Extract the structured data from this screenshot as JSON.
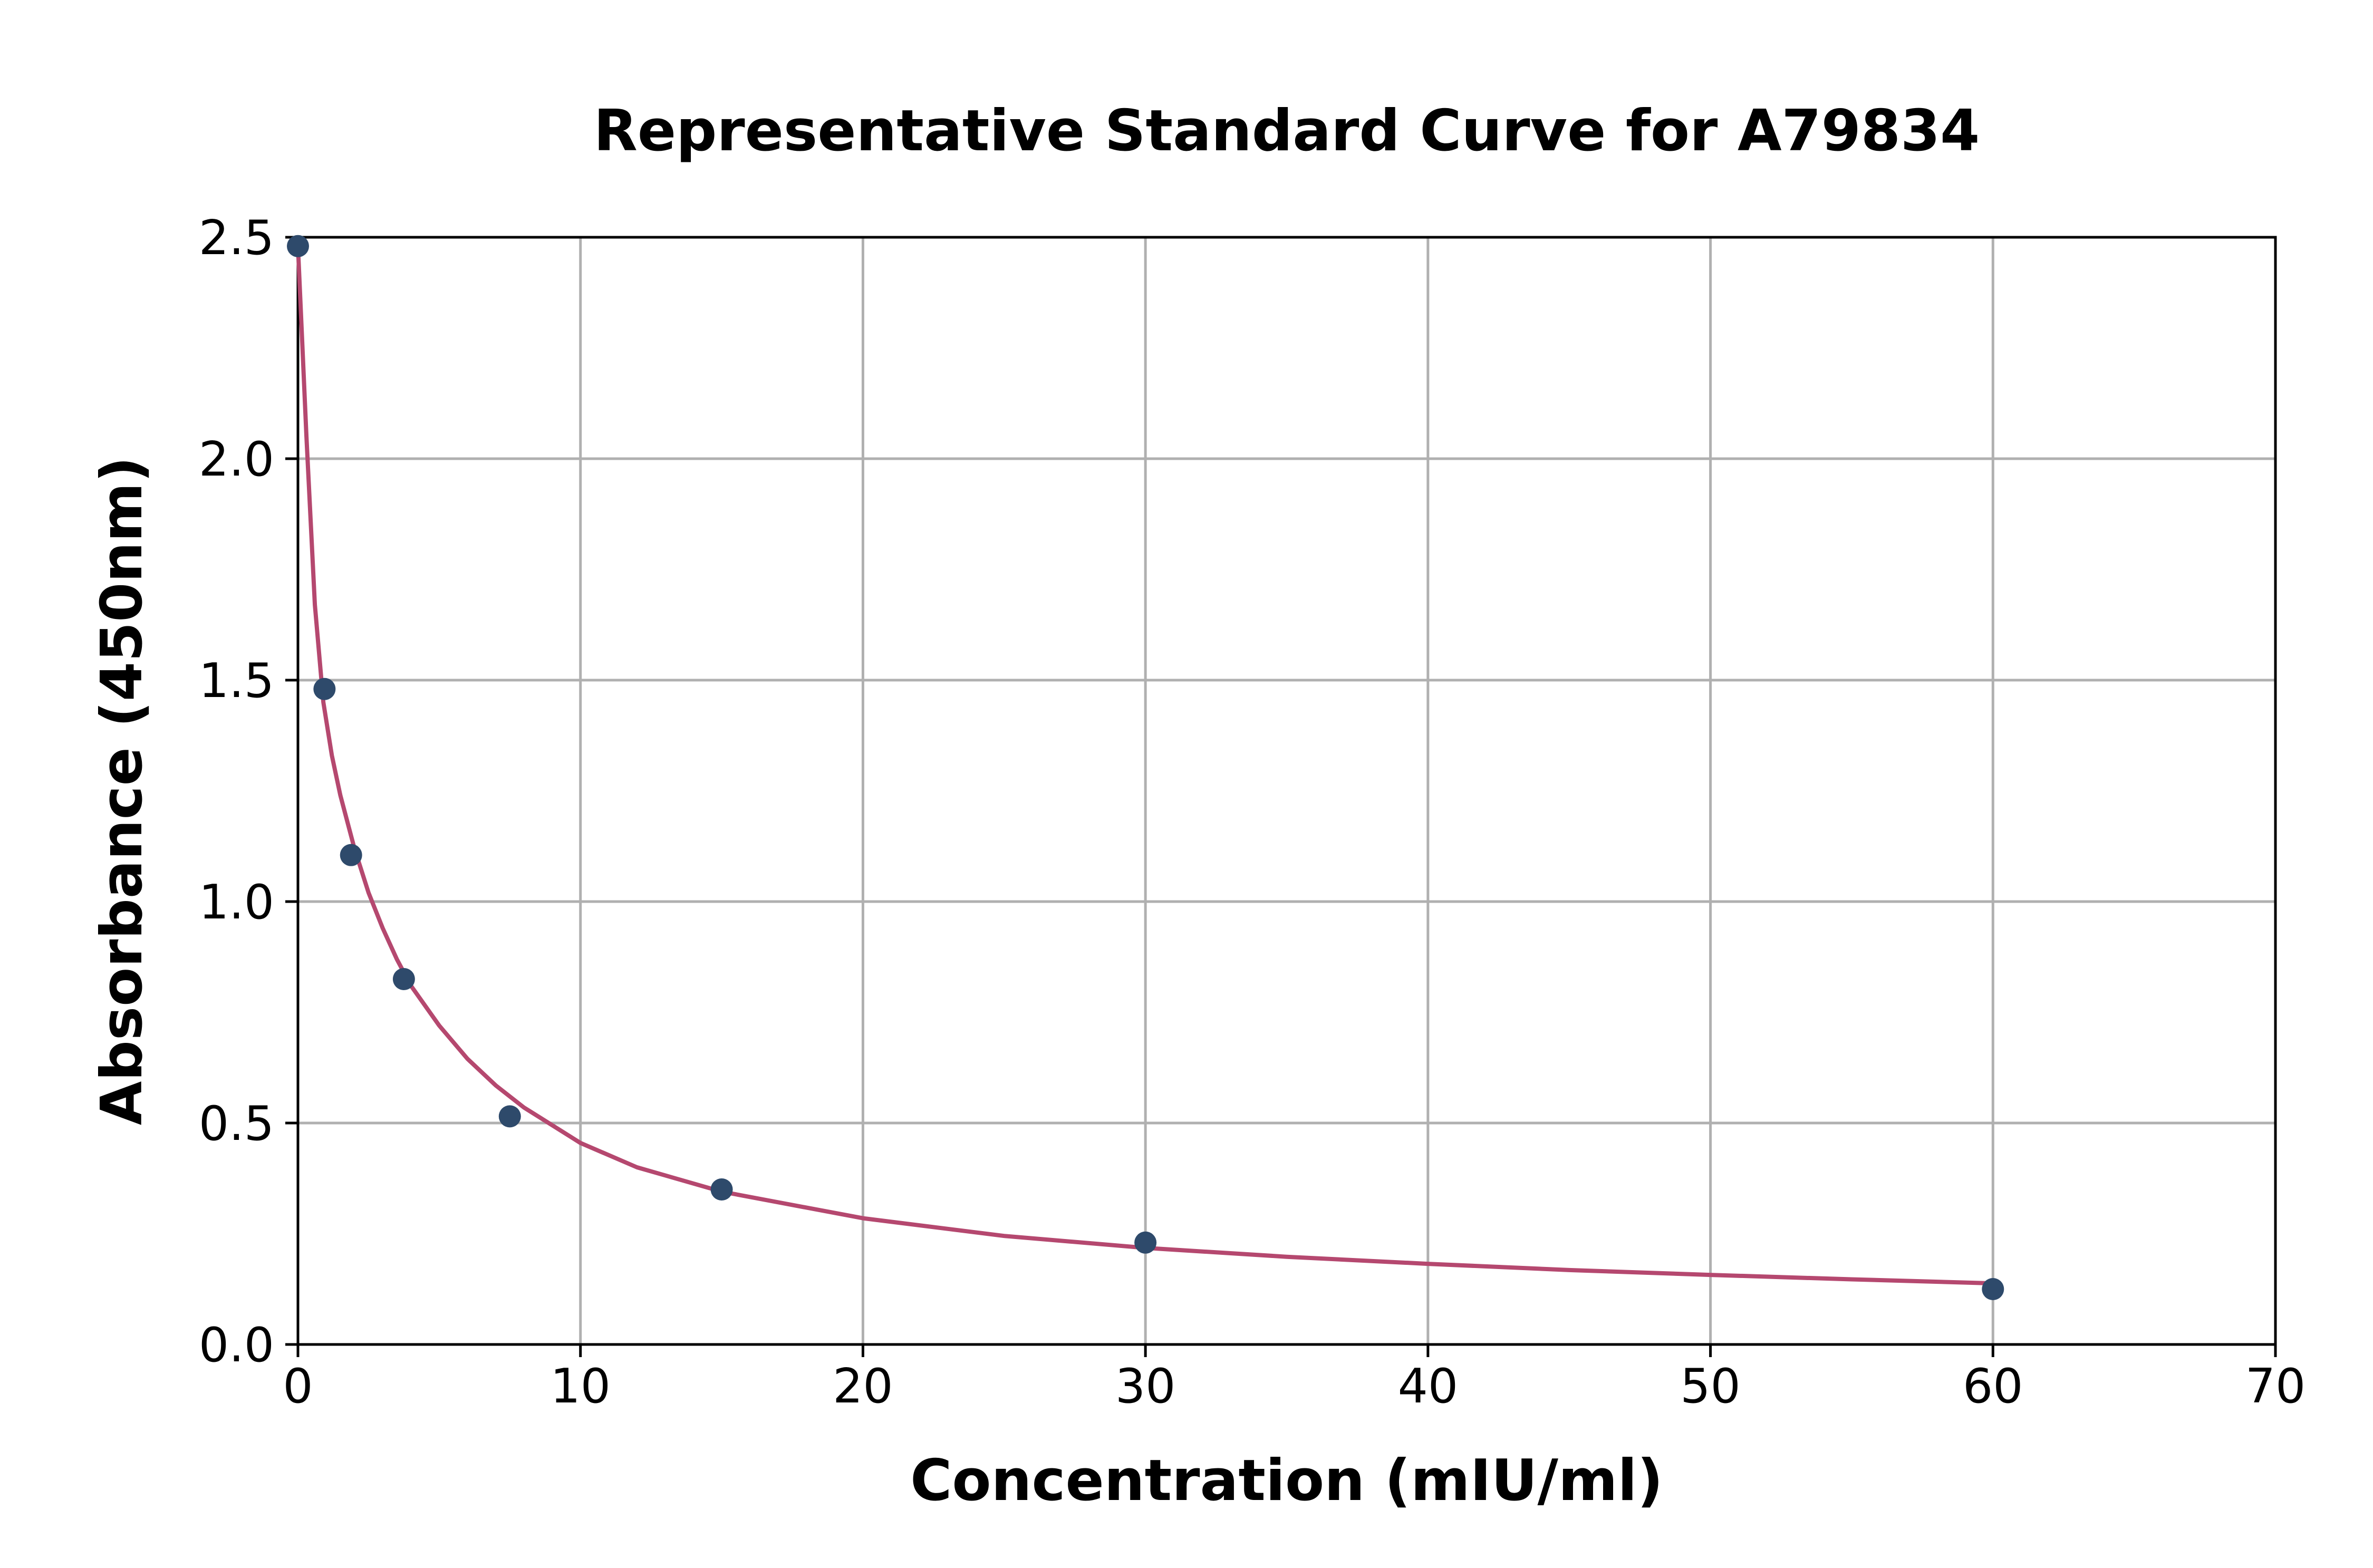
{
  "chart_data": {
    "type": "scatter",
    "title": "Representative Standard Curve for A79834",
    "xlabel": "Concentration (mIU/ml)",
    "ylabel": "Absorbance (450nm)",
    "xlim": [
      0,
      70
    ],
    "ylim": [
      0,
      2.5
    ],
    "x_ticks": [
      0,
      10,
      20,
      30,
      40,
      50,
      60,
      70
    ],
    "y_ticks": [
      0.0,
      0.5,
      1.0,
      1.5,
      2.0,
      2.5
    ],
    "x_tick_labels": [
      "0",
      "10",
      "20",
      "30",
      "40",
      "50",
      "60",
      "70"
    ],
    "y_tick_labels": [
      "0.0",
      "0.5",
      "1.0",
      "1.5",
      "2.0",
      "2.5"
    ],
    "grid": true,
    "legend": "none",
    "series": [
      {
        "kind": "points",
        "color": "#2e4a6b",
        "x": [
          0,
          0.94,
          1.88,
          3.75,
          7.5,
          15,
          30,
          60
        ],
        "y": [
          2.48,
          1.48,
          1.105,
          0.825,
          0.515,
          0.35,
          0.23,
          0.125
        ]
      },
      {
        "kind": "fitted-curve",
        "color": "#b5486f",
        "x": [
          0,
          0.3,
          0.6,
          0.9,
          1.2,
          1.5,
          2,
          2.5,
          3,
          3.5,
          4,
          5,
          6,
          7,
          8,
          10,
          12,
          15,
          20,
          25,
          30,
          35,
          40,
          45,
          50,
          55,
          60
        ],
        "y": [
          2.48,
          2.05,
          1.67,
          1.45,
          1.33,
          1.24,
          1.12,
          1.02,
          0.94,
          0.87,
          0.81,
          0.72,
          0.645,
          0.585,
          0.535,
          0.455,
          0.4,
          0.345,
          0.285,
          0.245,
          0.218,
          0.198,
          0.182,
          0.168,
          0.157,
          0.147,
          0.138
        ]
      }
    ]
  }
}
